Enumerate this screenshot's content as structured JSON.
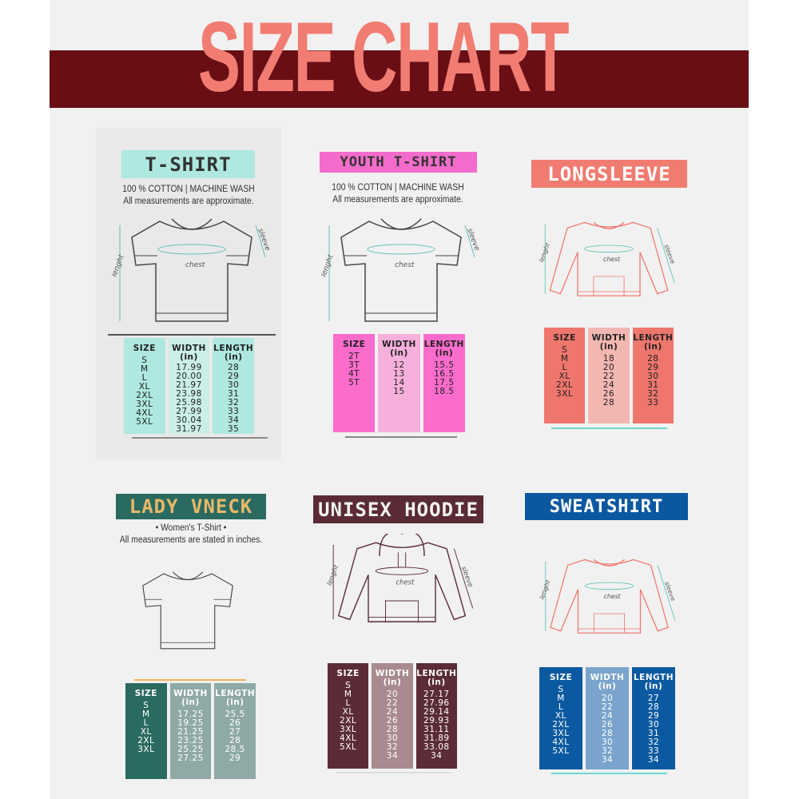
{
  "title": "SIZE CHART",
  "colors": {
    "banner": "#690e15",
    "title": "#f17c71",
    "background": "#f1f1f1"
  },
  "labels": {
    "chest": "chest",
    "length": "lenght",
    "sleeve": "sleeve"
  },
  "panels": [
    {
      "id": "tshirt",
      "title": "T-SHIRT",
      "subtitle": [
        "100 % COTTON | MACHINE WASH",
        "All measurements are approximate."
      ],
      "garment": "tshirt",
      "title_bg": "#aee8e0",
      "title_fg": "#333333",
      "col_colors": [
        "#aee8e0",
        "#cbeee8",
        "#aee8e0"
      ],
      "text_color": "#222222",
      "headers": [
        "SIZE",
        "WIDTH\n(in)",
        "LENGTH\n(in)"
      ],
      "rows": [
        [
          "S",
          "17.99",
          "28"
        ],
        [
          "M",
          "20.00",
          "29"
        ],
        [
          "L",
          "21.97",
          "30"
        ],
        [
          "XL",
          "23.98",
          "31"
        ],
        [
          "2XL",
          "25.98",
          "32"
        ],
        [
          "3XL",
          "27.99",
          "33"
        ],
        [
          "4XL",
          "30.04",
          "34"
        ],
        [
          "5XL",
          "31.97",
          "35"
        ]
      ]
    },
    {
      "id": "youth",
      "title": "YOUTH T-SHIRT",
      "subtitle": [
        "100 % COTTON | MACHINE WASH",
        "All measurements are approximate."
      ],
      "garment": "tshirt",
      "title_bg": "#f46ccb",
      "title_fg": "#333333",
      "col_colors": [
        "#fc6ccc",
        "#f7b0dc",
        "#fc6ccc"
      ],
      "text_color": "#222222",
      "headers": [
        "SIZE",
        "WIDTH\n(in)",
        "LENGTH\n(in)"
      ],
      "rows": [
        [
          "2T",
          "12",
          "15.5"
        ],
        [
          "3T",
          "13",
          "16.5"
        ],
        [
          "4T",
          "14",
          "17.5"
        ],
        [
          "5T",
          "15",
          "18.5"
        ]
      ]
    },
    {
      "id": "longsleeve",
      "title": "LONGSLEEVE",
      "subtitle": [],
      "garment": "sweatshirt",
      "title_bg": "#f07b70",
      "title_fg": "#ffffff",
      "col_colors": [
        "#ee766c",
        "#f2b7b0",
        "#ee766c"
      ],
      "text_color": "#222222",
      "headers": [
        "SIZE",
        "WIDTH\n(in)",
        "LENGTH\n(in)"
      ],
      "rows": [
        [
          "S",
          "18",
          "28"
        ],
        [
          "M",
          "20",
          "29"
        ],
        [
          "L",
          "22",
          "30"
        ],
        [
          "XL",
          "24",
          "31"
        ],
        [
          "2XL",
          "26",
          "32"
        ],
        [
          "3XL",
          "28",
          "33"
        ]
      ]
    },
    {
      "id": "lady",
      "title": "LADY VNECK",
      "subtitle": [
        "• Women's T-Shirt •",
        "All measurements are stated in inches."
      ],
      "garment": "lady",
      "title_bg": "#2a6a60",
      "title_fg": "#e8b86a",
      "col_colors": [
        "#2a6a61",
        "#8fa9a6",
        "#8fa9a6"
      ],
      "text_color": "#ffffff",
      "headers": [
        "SIZE",
        "WIDTH\n(in)",
        "LENGTH\n(in)"
      ],
      "rows": [
        [
          "S",
          "17.25",
          "25.5"
        ],
        [
          "M",
          "19.25",
          "26"
        ],
        [
          "L",
          "21.25",
          "27"
        ],
        [
          "XL",
          "23.25",
          "28"
        ],
        [
          "2XL",
          "25.25",
          "28.5"
        ],
        [
          "3XL",
          "27.25",
          "29"
        ]
      ]
    },
    {
      "id": "hoodie",
      "title": "UNISEX HOODIE",
      "subtitle": [],
      "garment": "hoodie",
      "title_bg": "#5a2b35",
      "title_fg": "#f3f3f3",
      "col_colors": [
        "#5b2c36",
        "#a88a8f",
        "#5b2c36"
      ],
      "text_color": "#ffffff",
      "headers": [
        "SIZE",
        "WIDTH\n(in)",
        "LENGTH\n(in)"
      ],
      "rows": [
        [
          "S",
          "20",
          "27.17"
        ],
        [
          "M",
          "22",
          "27.96"
        ],
        [
          "L",
          "24",
          "29.14"
        ],
        [
          "XL",
          "26",
          "29.93"
        ],
        [
          "2XL",
          "28",
          "31.11"
        ],
        [
          "3XL",
          "30",
          "31.89"
        ],
        [
          "4XL",
          "32",
          "33.08"
        ],
        [
          "5XL",
          "34",
          "34"
        ]
      ]
    },
    {
      "id": "sweatshirt",
      "title": "SWEATSHIRT",
      "subtitle": [],
      "garment": "sweatshirt",
      "title_bg": "#0b58a0",
      "title_fg": "#ffffff",
      "col_colors": [
        "#0b5aa1",
        "#7aa4cb",
        "#0b5aa1"
      ],
      "text_color": "#ffffff",
      "headers": [
        "SIZE",
        "WIDTH\n(in)",
        "LENGTH\n(in)"
      ],
      "rows": [
        [
          "S",
          "20",
          "27"
        ],
        [
          "M",
          "22",
          "28"
        ],
        [
          "L",
          "24",
          "29"
        ],
        [
          "XL",
          "26",
          "30"
        ],
        [
          "2XL",
          "28",
          "31"
        ],
        [
          "3XL",
          "30",
          "32"
        ],
        [
          "4XL",
          "32",
          "33"
        ],
        [
          "5XL",
          "34",
          "34"
        ]
      ]
    }
  ]
}
